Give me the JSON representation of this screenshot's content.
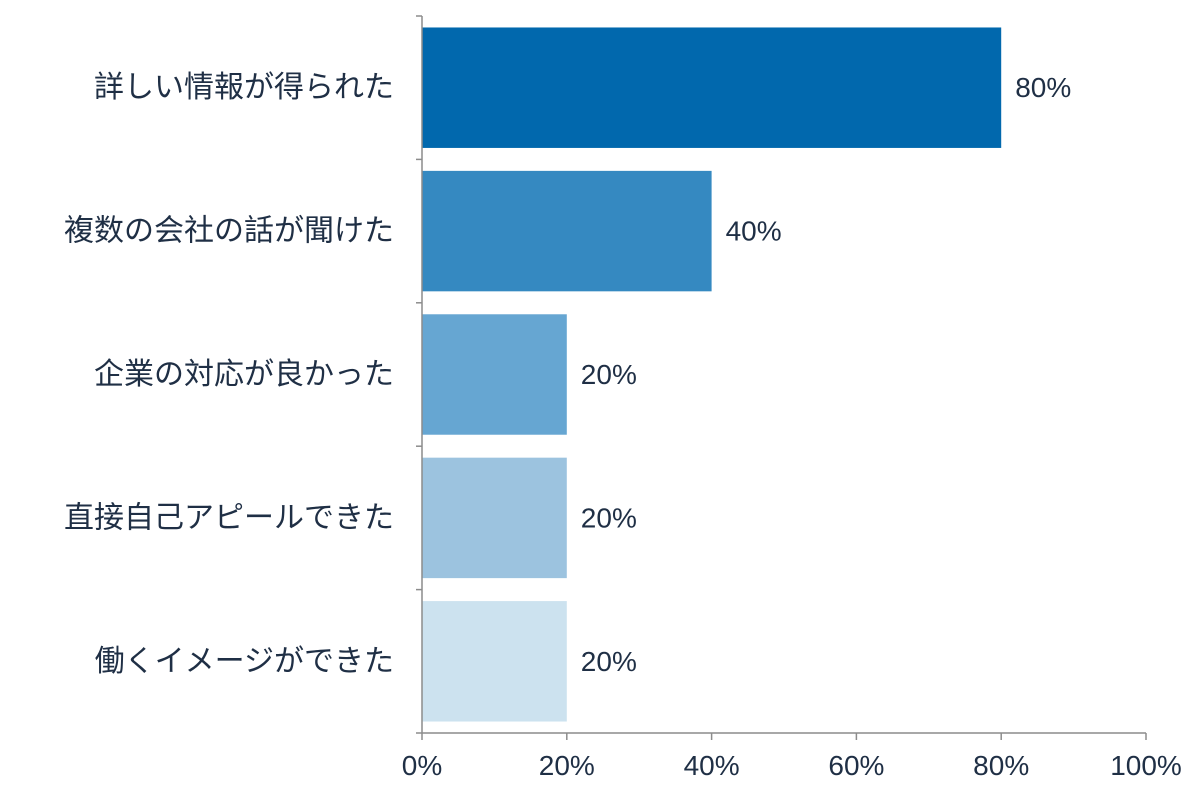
{
  "chart_data": {
    "type": "bar",
    "orientation": "horizontal",
    "categories": [
      "詳しい情報が得られた",
      "複数の会社の話が聞けた",
      "企業の対応が良かった",
      "直接自己アピールできた",
      "働くイメージができた"
    ],
    "values": [
      80,
      40,
      20,
      20,
      20
    ],
    "value_labels": [
      "80%",
      "40%",
      "20%",
      "20%",
      "20%"
    ],
    "bar_colors": [
      "#0168ad",
      "#3589c1",
      "#66a6d2",
      "#9cc3df",
      "#cce2ef"
    ],
    "xlim": [
      0,
      100
    ],
    "x_ticks": [
      0,
      20,
      40,
      60,
      80,
      100
    ],
    "x_tick_labels": [
      "0%",
      "20%",
      "40%",
      "60%",
      "80%",
      "100%"
    ],
    "grid": false,
    "legend": "none",
    "title": "",
    "xlabel": "",
    "ylabel": ""
  }
}
